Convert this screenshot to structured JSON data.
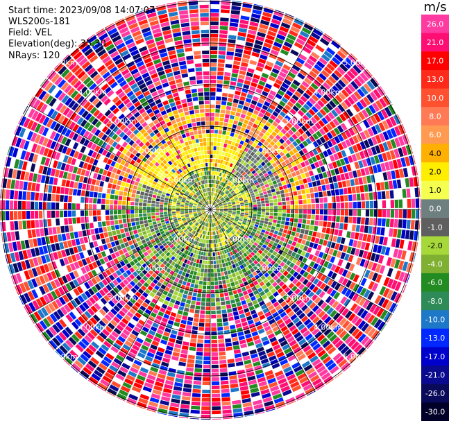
{
  "header": {
    "start_time": "Start time: 2023/09/08 14:07:07",
    "station": "WLS200s-181",
    "field": "Field: VEL",
    "elevation": "Elevation(deg): 35.30",
    "nrays": "NRays: 120"
  },
  "range_rings": {
    "labels": [
      "1.00km",
      "2.00km",
      "3.00km",
      "4.00km",
      "5.00km"
    ]
  },
  "colorbar": {
    "unit": "m/s",
    "ticks": [
      "26.0",
      "21.0",
      "17.0",
      "13.0",
      "10.0",
      "8.0",
      "6.0",
      "4.0",
      "2.0",
      "1.0",
      "0.0",
      "-1.0",
      "-2.0",
      "-4.0",
      "-6.0",
      "-8.0",
      "-10.0",
      "-13.0",
      "-17.0",
      "-21.0",
      "-26.0",
      "-30.0"
    ],
    "colors": [
      "#ff3aa0",
      "#ff0f73",
      "#ff0000",
      "#ff2a1a",
      "#ff5030",
      "#ff7a55",
      "#ff9a50",
      "#ffb000",
      "#ffee00",
      "#f5ff50",
      "#6e7f80",
      "#5f5f5f",
      "#a6d83a",
      "#7fb032",
      "#228b22",
      "#2e8b57",
      "#1e78c8",
      "#0028ff",
      "#0000cc",
      "#0a0a90",
      "#0a0a5a",
      "#000028"
    ]
  }
}
